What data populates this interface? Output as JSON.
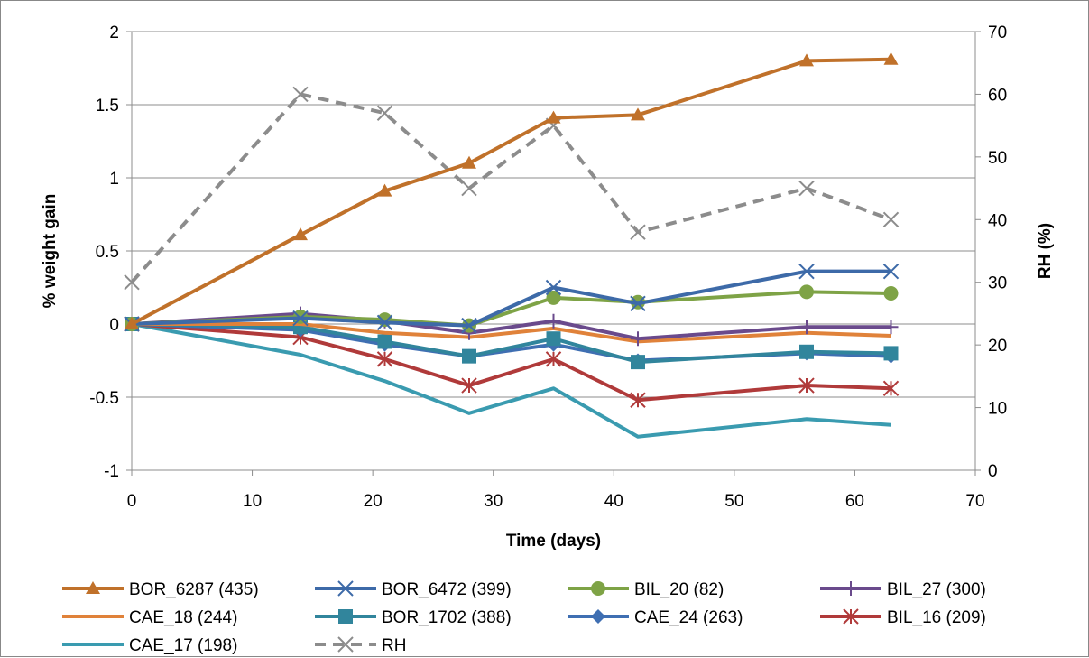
{
  "chart_data": {
    "type": "line",
    "title": "",
    "xlabel": "Time (days)",
    "ylabel": "% weight gain",
    "y2label": "RH (%)",
    "xlim": [
      0,
      70
    ],
    "ylim": [
      -1,
      2
    ],
    "y2lim": [
      0,
      70
    ],
    "xticks": [
      "0",
      "10",
      "20",
      "30",
      "40",
      "50",
      "60",
      "70"
    ],
    "yticks": [
      "-1",
      "-0.5",
      "0",
      "0.5",
      "1",
      "1.5",
      "2"
    ],
    "y2ticks": [
      "0",
      "10",
      "20",
      "30",
      "40",
      "50",
      "60",
      "70"
    ],
    "grid": "horizontal",
    "legend": "bottom",
    "series": [
      {
        "name": "BOR_6287 (435)",
        "axis": "left",
        "color": "#c0712a",
        "marker": "triangle",
        "dash": false,
        "x": [
          0,
          14,
          21,
          28,
          35,
          42,
          56,
          63
        ],
        "y": [
          0,
          0.61,
          0.91,
          1.1,
          1.41,
          1.43,
          1.8,
          1.81
        ]
      },
      {
        "name": "BOR_6472 (399)",
        "axis": "left",
        "color": "#3d6aa8",
        "marker": "x",
        "dash": false,
        "x": [
          0,
          14,
          21,
          28,
          35,
          42,
          56,
          63
        ],
        "y": [
          0,
          0.04,
          0.01,
          -0.01,
          0.25,
          0.14,
          0.36,
          0.36
        ]
      },
      {
        "name": "BIL_20 (82)",
        "axis": "left",
        "color": "#7ea346",
        "marker": "circle",
        "dash": false,
        "x": [
          0,
          14,
          21,
          28,
          35,
          42,
          56,
          63
        ],
        "y": [
          0,
          0.05,
          0.03,
          -0.01,
          0.18,
          0.15,
          0.22,
          0.21
        ]
      },
      {
        "name": "BIL_27 (300)",
        "axis": "left",
        "color": "#6a4a8c",
        "marker": "plus",
        "dash": false,
        "x": [
          0,
          14,
          21,
          28,
          35,
          42,
          56,
          63
        ],
        "y": [
          0,
          0.07,
          0.02,
          -0.06,
          0.02,
          -0.1,
          -0.02,
          -0.02
        ]
      },
      {
        "name": "CAE_18 (244)",
        "axis": "left",
        "color": "#e0823a",
        "marker": "none",
        "dash": false,
        "x": [
          0,
          14,
          21,
          28,
          35,
          42,
          56,
          63
        ],
        "y": [
          0,
          0.0,
          -0.06,
          -0.09,
          -0.03,
          -0.12,
          -0.06,
          -0.08
        ]
      },
      {
        "name": "BOR_1702 (388)",
        "axis": "left",
        "color": "#31859c",
        "marker": "square",
        "dash": false,
        "x": [
          0,
          14,
          21,
          28,
          35,
          42,
          56,
          63
        ],
        "y": [
          0,
          -0.02,
          -0.12,
          -0.22,
          -0.1,
          -0.26,
          -0.19,
          -0.2
        ]
      },
      {
        "name": "CAE_24 (263)",
        "axis": "left",
        "color": "#3f6fb2",
        "marker": "diamond",
        "dash": false,
        "x": [
          0,
          14,
          21,
          28,
          35,
          42,
          56,
          63
        ],
        "y": [
          0,
          -0.04,
          -0.14,
          -0.22,
          -0.14,
          -0.25,
          -0.2,
          -0.22
        ]
      },
      {
        "name": "BIL_16 (209)",
        "axis": "left",
        "color": "#b03a3a",
        "marker": "asterisk",
        "dash": false,
        "x": [
          0,
          14,
          21,
          28,
          35,
          42,
          56,
          63
        ],
        "y": [
          0,
          -0.09,
          -0.24,
          -0.42,
          -0.24,
          -0.52,
          -0.42,
          -0.44
        ]
      },
      {
        "name": "CAE_17 (198)",
        "axis": "left",
        "color": "#3a9bb0",
        "marker": "none",
        "dash": false,
        "x": [
          0,
          14,
          21,
          28,
          35,
          42,
          56,
          63
        ],
        "y": [
          0,
          -0.21,
          -0.39,
          -0.61,
          -0.44,
          -0.77,
          -0.65,
          -0.69
        ]
      },
      {
        "name": "RH",
        "axis": "right",
        "color": "#8c8c8c",
        "marker": "x",
        "dash": true,
        "x": [
          0,
          14,
          21,
          28,
          35,
          42,
          56,
          63
        ],
        "y": [
          30,
          60,
          57,
          45,
          55,
          38,
          45,
          40
        ]
      }
    ]
  }
}
